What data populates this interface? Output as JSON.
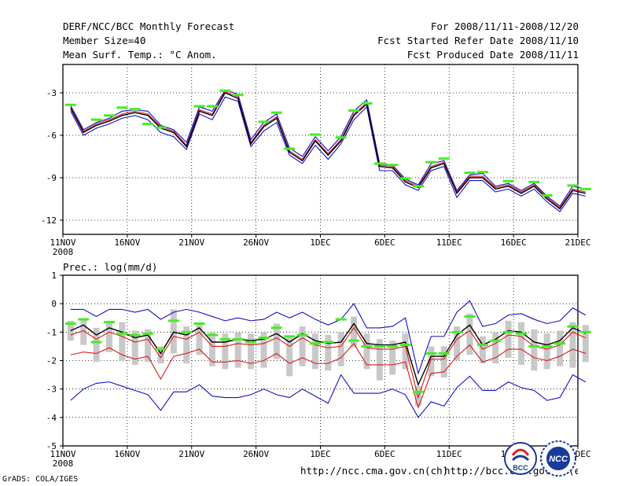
{
  "header": {
    "title": "DERF/NCC/BCC Monthly Forecast",
    "member_size": "Member Size=40",
    "variable": "Mean Surf. Temp.: °C Anom.",
    "period": "For 2008/11/11-2008/12/20",
    "start_date": "Fcst Started Refer Date 2008/11/10",
    "produced_date": "Fcst Produced Date 2008/11/11"
  },
  "footer": {
    "grads": "GrADS: COLA/IGES",
    "url1": "http://ncc.cma.gov.cn(ch)",
    "url2": "http://bcc.cma.gov.cn(en)",
    "logo1": "BCC",
    "logo2": "NCC"
  },
  "colors": {
    "black": "#000000",
    "red": "#d81c1c",
    "blue": "#1010c8",
    "green": "#44ee22",
    "gray": "#c8c8c8"
  },
  "chart_data": [
    {
      "type": "line",
      "title": "Mean Surf. Temp.: °C Anom.",
      "ylabel": "Mean Surf. Temp.: °C Anom.",
      "ylim": [
        -13,
        -1
      ],
      "yticks": [
        -12,
        -9,
        -6,
        -3
      ],
      "xlim": [
        0,
        40
      ],
      "xticks": [
        {
          "x": 0,
          "label": "11NOV",
          "sub": "2008"
        },
        {
          "x": 5,
          "label": "16NOV"
        },
        {
          "x": 10,
          "label": "21NOV"
        },
        {
          "x": 15,
          "label": "26NOV"
        },
        {
          "x": 20,
          "label": "1DEC"
        },
        {
          "x": 25,
          "label": "6DEC"
        },
        {
          "x": 30,
          "label": "11DEC"
        },
        {
          "x": 35,
          "label": "16DEC"
        },
        {
          "x": 40,
          "label": "21DEC"
        }
      ],
      "series": [
        {
          "name": "ensemble_mean",
          "color": "#000000",
          "values": [
            -4.1,
            -5.8,
            -5.3,
            -5.0,
            -4.6,
            -4.4,
            -4.6,
            -5.5,
            -5.8,
            -6.8,
            -4.3,
            -4.6,
            -3.0,
            -3.4,
            -6.6,
            -5.4,
            -4.8,
            -7.2,
            -7.8,
            -6.4,
            -7.4,
            -6.4,
            -4.6,
            -3.8,
            -8.2,
            -8.3,
            -9.3,
            -9.7,
            -8.3,
            -8.0,
            -10.1,
            -9.0,
            -9.0,
            -9.8,
            -9.6,
            -10.1,
            -9.6,
            -10.5,
            -11.2,
            -9.9,
            -10.1
          ]
        },
        {
          "name": "member_red",
          "color": "#d81c1c",
          "values": [
            -4.0,
            -5.7,
            -5.2,
            -4.9,
            -4.5,
            -4.3,
            -4.5,
            -5.4,
            -5.7,
            -6.7,
            -4.2,
            -4.5,
            -2.9,
            -3.3,
            -6.5,
            -5.3,
            -4.7,
            -7.1,
            -7.7,
            -6.3,
            -7.3,
            -6.3,
            -4.5,
            -3.7,
            -8.1,
            -8.2,
            -9.2,
            -9.6,
            -8.2,
            -7.9,
            -10.0,
            -8.9,
            -8.9,
            -9.7,
            -9.5,
            -10.0,
            -9.5,
            -10.4,
            -11.1,
            -9.8,
            -10.0
          ]
        },
        {
          "name": "upper_bound",
          "color": "#1010c8",
          "values": [
            -3.9,
            -5.6,
            -5.1,
            -4.8,
            -4.3,
            -4.2,
            -4.3,
            -5.3,
            -5.6,
            -6.5,
            -4.0,
            -4.3,
            -2.8,
            -3.1,
            -6.3,
            -5.1,
            -4.5,
            -6.9,
            -7.5,
            -6.1,
            -7.1,
            -6.1,
            -4.3,
            -3.5,
            -8.0,
            -8.1,
            -9.1,
            -9.5,
            -8.0,
            -7.8,
            -9.9,
            -8.8,
            -8.7,
            -9.6,
            -9.4,
            -9.9,
            -9.4,
            -10.3,
            -11.0,
            -9.6,
            -9.8
          ]
        },
        {
          "name": "lower_bound",
          "color": "#1010c8",
          "values": [
            -4.3,
            -6.0,
            -5.5,
            -5.2,
            -4.8,
            -4.6,
            -4.9,
            -5.8,
            -6.1,
            -7.0,
            -4.5,
            -4.9,
            -3.3,
            -3.6,
            -6.8,
            -5.7,
            -5.1,
            -7.4,
            -8.0,
            -6.7,
            -7.7,
            -6.6,
            -4.9,
            -4.0,
            -8.5,
            -8.5,
            -9.5,
            -9.9,
            -8.5,
            -8.2,
            -10.4,
            -9.2,
            -9.2,
            -10.0,
            -9.8,
            -10.3,
            -9.8,
            -10.7,
            -11.4,
            -10.1,
            -10.3
          ]
        }
      ],
      "markers": [
        {
          "name": "observed",
          "color": "#44ee22",
          "values": [
            -3.85,
            null,
            -4.9,
            -4.6,
            -4.05,
            -4.15,
            -5.2,
            -5.45,
            null,
            null,
            -3.95,
            -3.95,
            -2.85,
            -3.15,
            null,
            -5.05,
            -4.4,
            -6.95,
            null,
            -5.95,
            null,
            -6.15,
            -4.25,
            -3.75,
            -8.0,
            -8.1,
            -9.05,
            -9.6,
            -7.9,
            -7.65,
            null,
            -8.65,
            -8.6,
            null,
            -9.25,
            null,
            -9.3,
            -10.25,
            null,
            -9.55,
            -9.8
          ]
        }
      ]
    },
    {
      "type": "line",
      "title": "Prec.: log(mm/d)",
      "ylabel": "Prec.: log(mm/d)",
      "ylim": [
        -5,
        1
      ],
      "yticks": [
        -5,
        -4,
        -3,
        -2,
        -1,
        0,
        1
      ],
      "xlim": [
        0,
        40
      ],
      "xticks": [
        {
          "x": 0,
          "label": "11NOV",
          "sub": "2008"
        },
        {
          "x": 5,
          "label": "16NOV"
        },
        {
          "x": 10,
          "label": "21NOV"
        },
        {
          "x": 15,
          "label": "26NOV"
        },
        {
          "x": 20,
          "label": "1DEC"
        },
        {
          "x": 25,
          "label": "6DEC"
        },
        {
          "x": 30,
          "label": "11DEC"
        },
        {
          "x": 35,
          "label": "16DEC"
        },
        {
          "x": 40,
          "label": "21DEC"
        }
      ],
      "series": [
        {
          "name": "ensemble_mean",
          "color": "#000000",
          "values": [
            -0.95,
            -0.75,
            -1.1,
            -0.85,
            -1.0,
            -1.2,
            -1.1,
            -1.75,
            -1.0,
            -1.1,
            -0.85,
            -1.35,
            -1.35,
            -1.25,
            -1.3,
            -1.25,
            -1.05,
            -1.35,
            -1.05,
            -1.3,
            -1.4,
            -1.35,
            -0.7,
            -1.4,
            -1.45,
            -1.45,
            -1.35,
            -2.85,
            -1.85,
            -1.85,
            -1.1,
            -0.75,
            -1.45,
            -1.25,
            -0.95,
            -1.0,
            -1.35,
            -1.45,
            -1.3,
            -0.85,
            -1.05
          ]
        },
        {
          "name": "red_upper",
          "color": "#d81c1c",
          "values": [
            -1.1,
            -0.95,
            -1.25,
            -1.0,
            -1.15,
            -1.35,
            -1.25,
            -1.9,
            -1.15,
            -1.25,
            -1.0,
            -1.5,
            -1.5,
            -1.4,
            -1.45,
            -1.4,
            -1.2,
            -1.5,
            -1.2,
            -1.45,
            -1.55,
            -1.5,
            -0.85,
            -1.55,
            -1.6,
            -1.6,
            -1.5,
            -3.3,
            -1.95,
            -1.95,
            -1.25,
            -0.95,
            -1.6,
            -1.4,
            -1.1,
            -1.15,
            -1.5,
            -1.6,
            -1.45,
            -1.0,
            -1.2
          ]
        },
        {
          "name": "red_lower",
          "color": "#d81c1c",
          "values": [
            -1.8,
            -1.7,
            -1.75,
            -1.55,
            -1.8,
            -1.95,
            -1.85,
            -2.65,
            -1.85,
            -1.75,
            -1.6,
            -2.05,
            -2.05,
            -2.0,
            -2.1,
            -2.0,
            -1.75,
            -2.1,
            -1.9,
            -2.1,
            -2.1,
            -1.9,
            -1.4,
            -2.15,
            -2.15,
            -2.15,
            -2.05,
            -3.65,
            -2.45,
            -2.4,
            -1.85,
            -1.45,
            -2.05,
            -1.9,
            -1.6,
            -1.6,
            -1.9,
            -2.0,
            -1.85,
            -1.6,
            -1.75
          ]
        },
        {
          "name": "blue_upper",
          "color": "#1010c8",
          "values": [
            -0.2,
            -0.2,
            -0.45,
            -0.2,
            -0.2,
            -0.3,
            -0.2,
            -0.55,
            -0.3,
            -0.2,
            -0.3,
            -0.45,
            -0.6,
            -0.5,
            -0.6,
            -0.55,
            -0.3,
            -0.5,
            -0.3,
            -0.55,
            -0.75,
            -0.55,
            0.0,
            -0.85,
            -0.85,
            -0.8,
            -0.5,
            -2.45,
            -1.15,
            -1.15,
            -0.3,
            0.1,
            -0.8,
            -0.7,
            -0.4,
            -0.35,
            -0.55,
            -0.7,
            -0.6,
            -0.15,
            -0.4
          ]
        },
        {
          "name": "blue_lower",
          "color": "#1010c8",
          "values": [
            -3.4,
            -3.0,
            -2.8,
            -2.75,
            -2.9,
            -3.05,
            -3.2,
            -3.75,
            -3.1,
            -3.1,
            -2.85,
            -3.25,
            -3.3,
            -3.3,
            -3.2,
            -3.0,
            -3.2,
            -3.3,
            -3.0,
            -3.25,
            -3.5,
            -2.5,
            -3.15,
            -3.15,
            -3.15,
            -3.0,
            -3.2,
            -4.0,
            -3.45,
            -3.6,
            -2.95,
            -2.55,
            -3.05,
            -3.05,
            -2.75,
            -2.95,
            -3.05,
            -3.4,
            -3.3,
            -2.5,
            -2.75
          ]
        }
      ],
      "boxes": [
        {
          "lo": -1.3,
          "hi": -0.6
        },
        {
          "lo": -1.45,
          "hi": -0.55
        },
        {
          "lo": -2.05,
          "hi": -0.85
        },
        {
          "lo": -1.7,
          "hi": -0.6
        },
        {
          "lo": -2.0,
          "hi": -0.65
        },
        {
          "lo": -2.15,
          "hi": -0.95
        },
        {
          "lo": -2.05,
          "hi": -0.9
        },
        {
          "lo": -2.1,
          "hi": -1.5
        },
        {
          "lo": -1.75,
          "hi": -0.2
        },
        {
          "lo": -2.1,
          "hi": -0.8
        },
        {
          "lo": -1.8,
          "hi": -0.7
        },
        {
          "lo": -2.2,
          "hi": -1.0
        },
        {
          "lo": -2.3,
          "hi": -1.05
        },
        {
          "lo": -2.25,
          "hi": -1.0
        },
        {
          "lo": -2.3,
          "hi": -1.05
        },
        {
          "lo": -2.25,
          "hi": -1.0
        },
        {
          "lo": -1.95,
          "hi": -0.7
        },
        {
          "lo": -2.55,
          "hi": -1.15
        },
        {
          "lo": -2.2,
          "hi": -0.8
        },
        {
          "lo": -2.3,
          "hi": -1.05
        },
        {
          "lo": -2.35,
          "hi": -1.1
        },
        {
          "lo": -2.2,
          "hi": -1.0
        },
        {
          "lo": -1.55,
          "hi": -0.45
        },
        {
          "lo": -2.3,
          "hi": -1.05
        },
        {
          "lo": -2.7,
          "hi": -1.25
        },
        {
          "lo": -2.5,
          "hi": -1.3
        },
        {
          "lo": -2.3,
          "hi": -1.05
        },
        {
          "lo": -3.6,
          "hi": -2.9
        },
        {
          "lo": -2.55,
          "hi": -1.5
        },
        {
          "lo": -2.6,
          "hi": -1.5
        },
        {
          "lo": -2.0,
          "hi": -0.8
        },
        {
          "lo": -1.8,
          "hi": -0.35
        },
        {
          "lo": -2.1,
          "hi": -1.15
        },
        {
          "lo": -2.1,
          "hi": -1.0
        },
        {
          "lo": -1.9,
          "hi": -0.6
        },
        {
          "lo": -2.15,
          "hi": -0.65
        },
        {
          "lo": -2.35,
          "hi": -0.9
        },
        {
          "lo": -2.3,
          "hi": -1.05
        },
        {
          "lo": -2.2,
          "hi": -0.95
        },
        {
          "lo": -2.25,
          "hi": -0.65
        },
        {
          "lo": -2.05,
          "hi": -0.75
        }
      ],
      "markers": [
        {
          "name": "observed",
          "color": "#44ee22",
          "values": [
            -0.7,
            -0.55,
            -1.35,
            -0.65,
            -1.05,
            -1.1,
            -1.05,
            -1.6,
            -0.6,
            -1.0,
            -0.7,
            -1.1,
            -1.25,
            -1.25,
            -1.35,
            -1.2,
            -0.85,
            -1.15,
            -1.1,
            -1.4,
            -1.35,
            -0.55,
            -1.3,
            -1.5,
            -1.5,
            -1.5,
            -1.45,
            -3.1,
            -1.75,
            -1.75,
            -1.0,
            -0.45,
            -1.45,
            -1.3,
            -1.0,
            -1.05,
            -1.5,
            -1.5,
            -1.4,
            -0.8,
            -1.0
          ]
        }
      ]
    }
  ]
}
